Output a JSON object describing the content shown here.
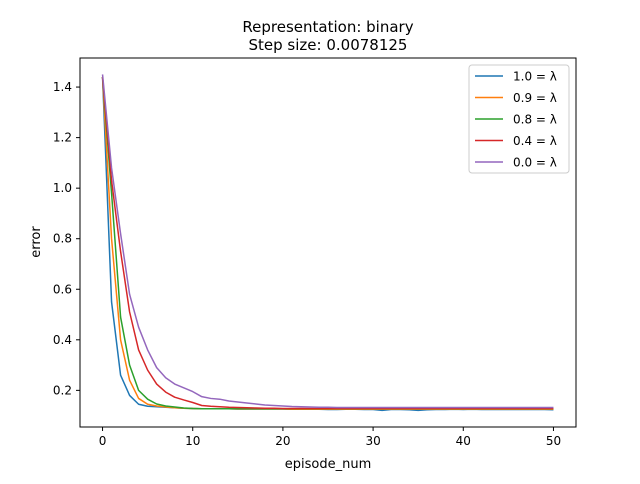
{
  "chart_data": {
    "type": "line",
    "title": "Representation: binary",
    "subtitle": "Step size: 0.0078125",
    "xlabel": "episode_num",
    "ylabel": "error",
    "xlim": [
      -2.5,
      52.5
    ],
    "ylim": [
      0.055,
      1.515
    ],
    "xticks": [
      "0",
      "10",
      "20",
      "30",
      "40",
      "50"
    ],
    "yticks": [
      "0.2",
      "0.4",
      "0.6",
      "0.8",
      "1.0",
      "1.2",
      "1.4"
    ],
    "grid": false,
    "legend_position": "top-right",
    "x": [
      0,
      1,
      2,
      3,
      4,
      5,
      6,
      7,
      8,
      9,
      10,
      11,
      12,
      13,
      14,
      15,
      16,
      17,
      18,
      19,
      20,
      21,
      22,
      23,
      24,
      25,
      26,
      27,
      28,
      29,
      30,
      31,
      32,
      33,
      34,
      35,
      36,
      37,
      38,
      39,
      40,
      41,
      42,
      43,
      44,
      45,
      46,
      47,
      48,
      49,
      50
    ],
    "series": [
      {
        "name": "1.0 = λ",
        "color": "#1f77b4",
        "values": [
          1.44,
          0.55,
          0.26,
          0.18,
          0.145,
          0.137,
          0.135,
          0.133,
          0.131,
          0.129,
          0.128,
          0.127,
          0.127,
          0.127,
          0.127,
          0.126,
          0.126,
          0.126,
          0.126,
          0.126,
          0.126,
          0.125,
          0.125,
          0.125,
          0.125,
          0.124,
          0.124,
          0.125,
          0.125,
          0.124,
          0.124,
          0.121,
          0.124,
          0.124,
          0.123,
          0.121,
          0.123,
          0.124,
          0.124,
          0.125,
          0.124,
          0.125,
          0.124,
          0.124,
          0.124,
          0.124,
          0.124,
          0.124,
          0.124,
          0.124,
          0.123
        ]
      },
      {
        "name": "0.9 = λ",
        "color": "#ff7f0e",
        "values": [
          1.44,
          0.8,
          0.4,
          0.24,
          0.168,
          0.145,
          0.138,
          0.134,
          0.131,
          0.129,
          0.128,
          0.127,
          0.127,
          0.127,
          0.127,
          0.126,
          0.126,
          0.126,
          0.126,
          0.126,
          0.126,
          0.125,
          0.125,
          0.125,
          0.125,
          0.125,
          0.125,
          0.125,
          0.125,
          0.125,
          0.125,
          0.125,
          0.125,
          0.125,
          0.125,
          0.125,
          0.125,
          0.125,
          0.125,
          0.125,
          0.125,
          0.125,
          0.125,
          0.125,
          0.125,
          0.125,
          0.125,
          0.125,
          0.125,
          0.125,
          0.125
        ]
      },
      {
        "name": "0.8 = λ",
        "color": "#2ca02c",
        "values": [
          1.44,
          0.98,
          0.49,
          0.3,
          0.2,
          0.165,
          0.146,
          0.138,
          0.134,
          0.13,
          0.128,
          0.127,
          0.127,
          0.127,
          0.127,
          0.127,
          0.127,
          0.127,
          0.127,
          0.127,
          0.127,
          0.127,
          0.127,
          0.127,
          0.127,
          0.127,
          0.127,
          0.127,
          0.127,
          0.127,
          0.127,
          0.127,
          0.127,
          0.127,
          0.127,
          0.127,
          0.127,
          0.127,
          0.127,
          0.127,
          0.127,
          0.127,
          0.127,
          0.127,
          0.127,
          0.127,
          0.127,
          0.127,
          0.127,
          0.127,
          0.127
        ]
      },
      {
        "name": "0.4 = λ",
        "color": "#d62728",
        "values": [
          1.44,
          1.03,
          0.75,
          0.51,
          0.36,
          0.28,
          0.225,
          0.193,
          0.173,
          0.162,
          0.152,
          0.14,
          0.137,
          0.135,
          0.133,
          0.132,
          0.131,
          0.13,
          0.129,
          0.129,
          0.128,
          0.128,
          0.128,
          0.128,
          0.128,
          0.128,
          0.128,
          0.128,
          0.128,
          0.128,
          0.128,
          0.128,
          0.128,
          0.128,
          0.128,
          0.128,
          0.128,
          0.128,
          0.128,
          0.128,
          0.128,
          0.128,
          0.128,
          0.128,
          0.128,
          0.128,
          0.128,
          0.128,
          0.128,
          0.128,
          0.128
        ]
      },
      {
        "name": "0.0 = λ",
        "color": "#9467bd",
        "values": [
          1.45,
          1.08,
          0.82,
          0.58,
          0.45,
          0.36,
          0.29,
          0.25,
          0.225,
          0.21,
          0.195,
          0.175,
          0.168,
          0.165,
          0.158,
          0.154,
          0.15,
          0.146,
          0.142,
          0.14,
          0.138,
          0.136,
          0.135,
          0.134,
          0.133,
          0.133,
          0.132,
          0.132,
          0.132,
          0.132,
          0.132,
          0.132,
          0.132,
          0.132,
          0.132,
          0.132,
          0.132,
          0.132,
          0.132,
          0.132,
          0.132,
          0.132,
          0.132,
          0.132,
          0.132,
          0.132,
          0.132,
          0.132,
          0.132,
          0.132,
          0.132
        ]
      }
    ]
  }
}
